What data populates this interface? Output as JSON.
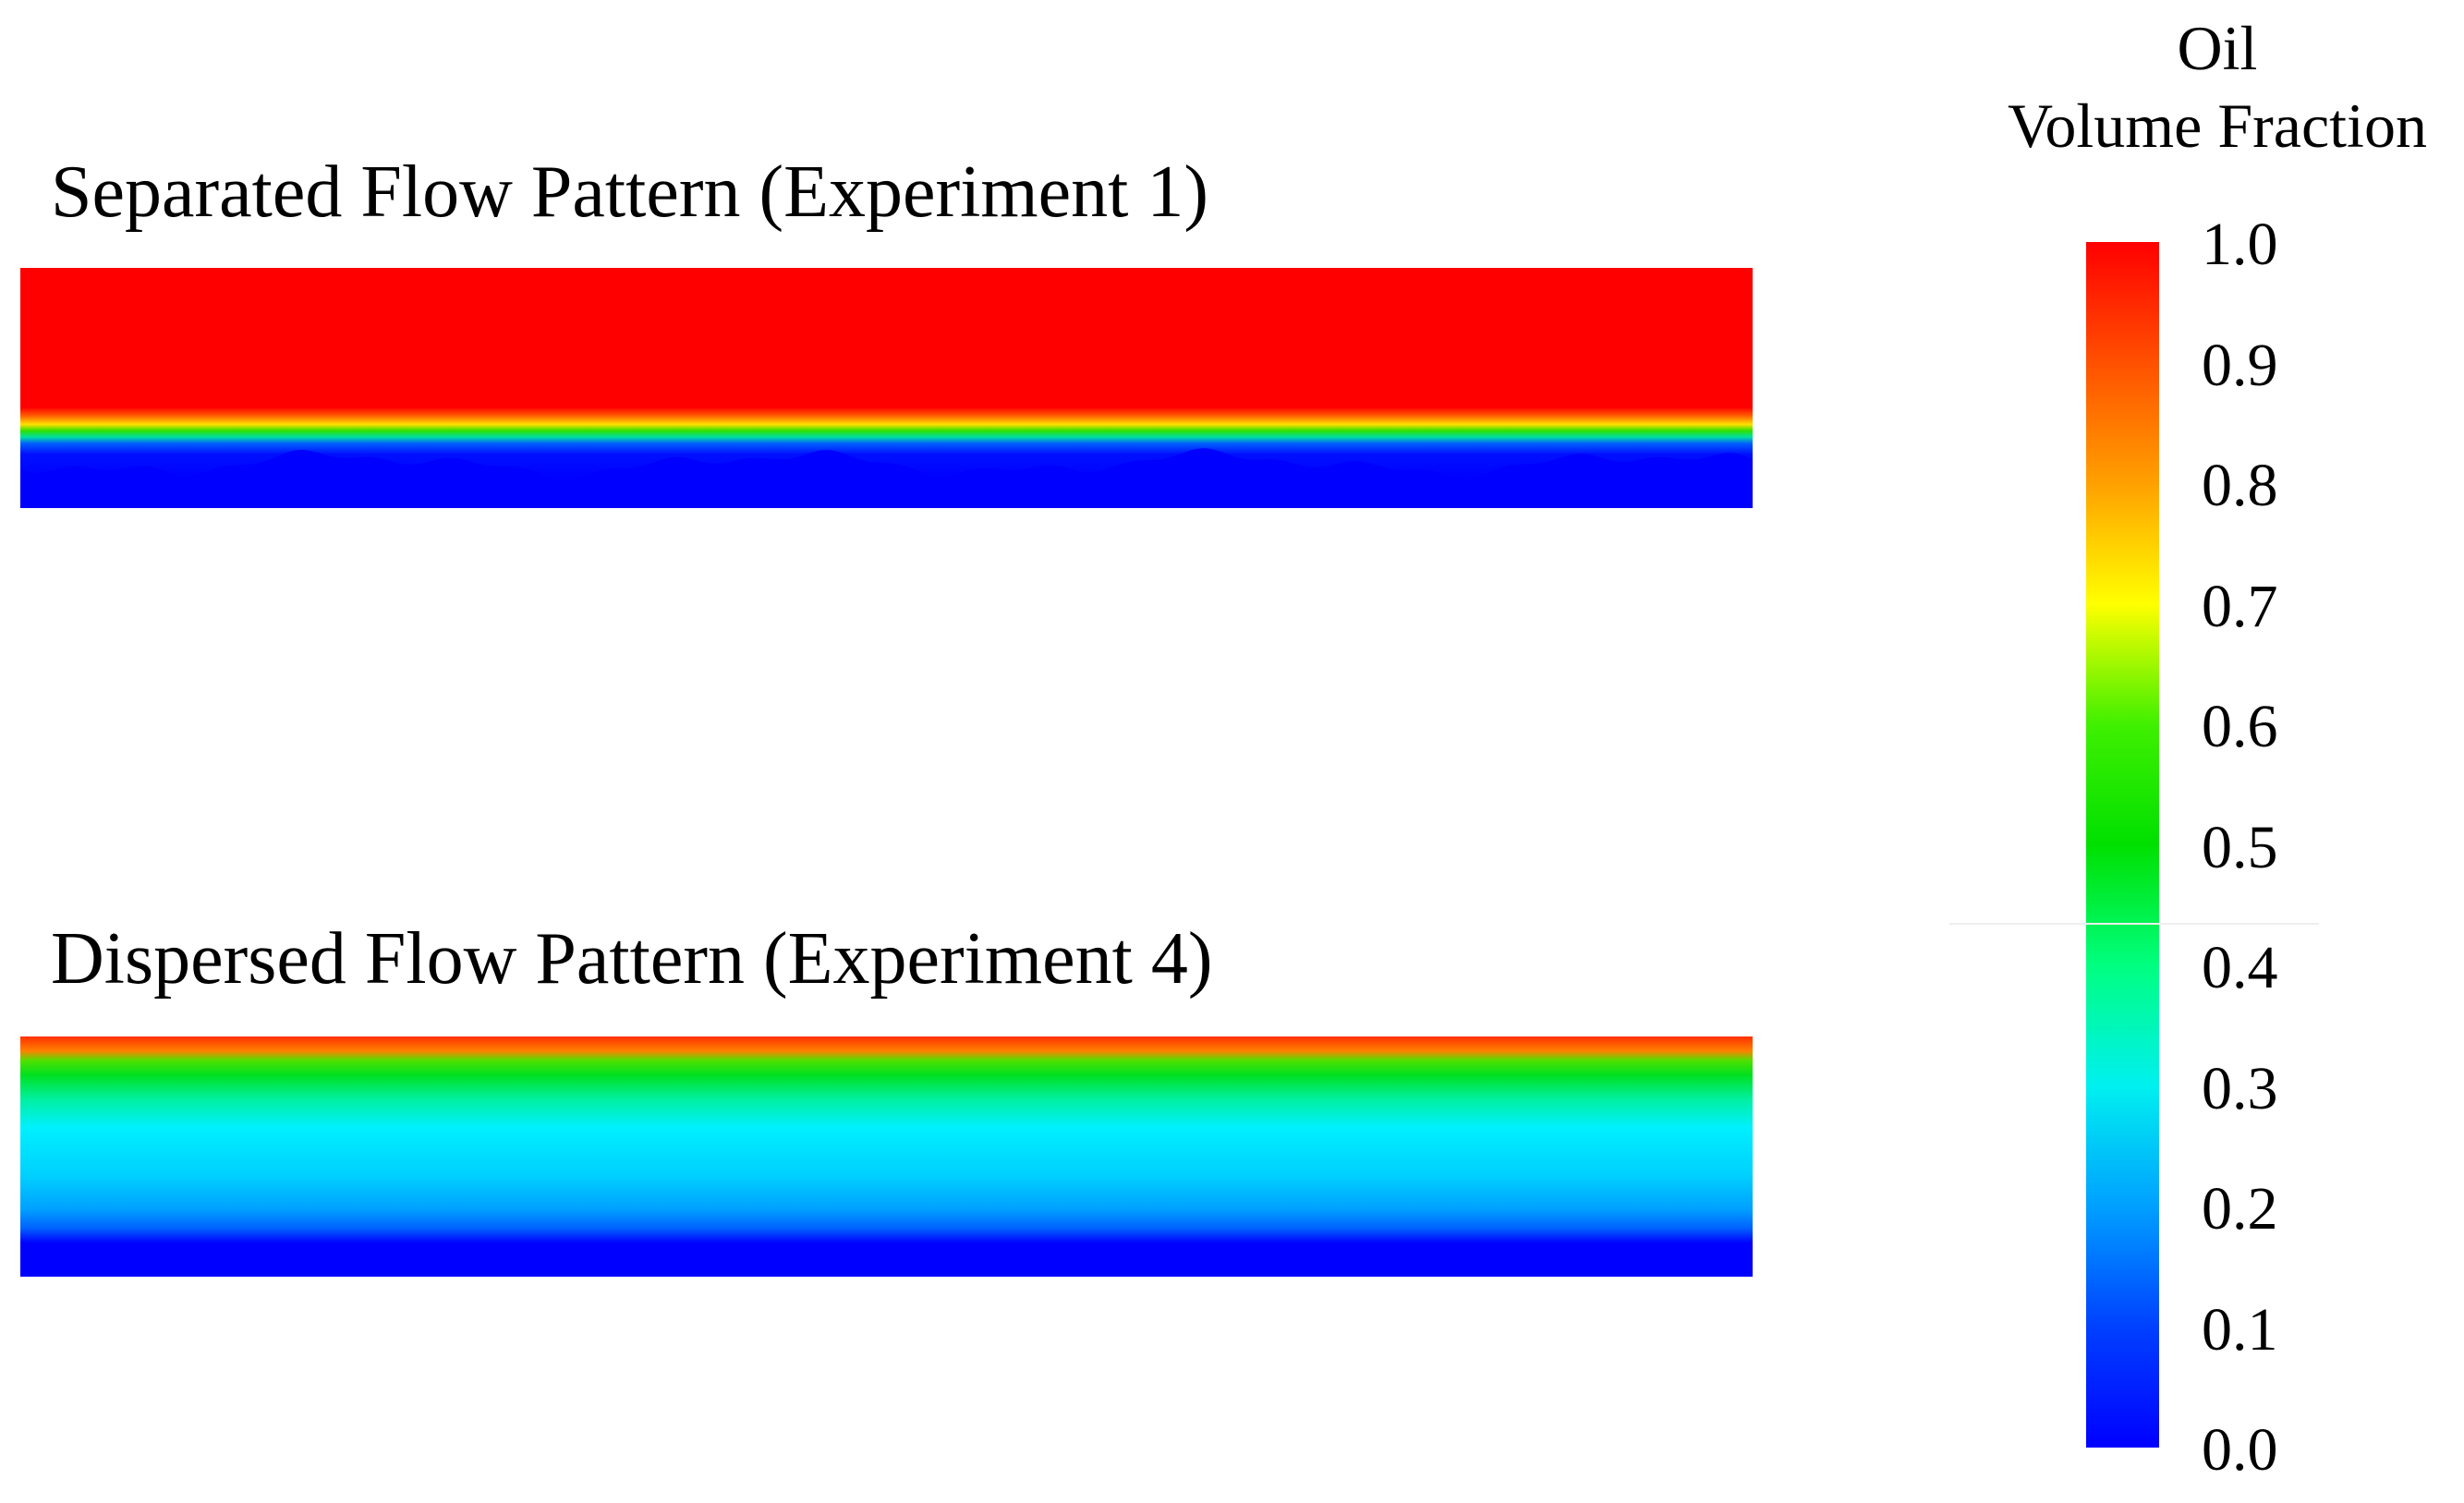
{
  "panels": [
    {
      "title": "Separated Flow Pattern (Experiment 1)",
      "pattern": "separated"
    },
    {
      "title": "Dispersed Flow Pattern (Experiment 4)",
      "pattern": "dispersed"
    }
  ],
  "legend": {
    "heading_line1": "Oil",
    "heading_line2": "Volume Fraction",
    "ticks": [
      "1.0",
      "0.9",
      "0.8",
      "0.7",
      "0.6",
      "0.5",
      "0.4",
      "0.3",
      "0.2",
      "0.1",
      "0.0"
    ],
    "colormap": [
      {
        "value": 0.0,
        "color": "#0000ff"
      },
      {
        "value": 0.1,
        "color": "#0040ff"
      },
      {
        "value": 0.2,
        "color": "#00a0ff"
      },
      {
        "value": 0.3,
        "color": "#00f0f0"
      },
      {
        "value": 0.4,
        "color": "#00ff80"
      },
      {
        "value": 0.5,
        "color": "#00e000"
      },
      {
        "value": 0.6,
        "color": "#40f000"
      },
      {
        "value": 0.7,
        "color": "#ffff00"
      },
      {
        "value": 0.8,
        "color": "#ffa000"
      },
      {
        "value": 0.9,
        "color": "#ff5000"
      },
      {
        "value": 1.0,
        "color": "#ff0000"
      }
    ]
  }
}
